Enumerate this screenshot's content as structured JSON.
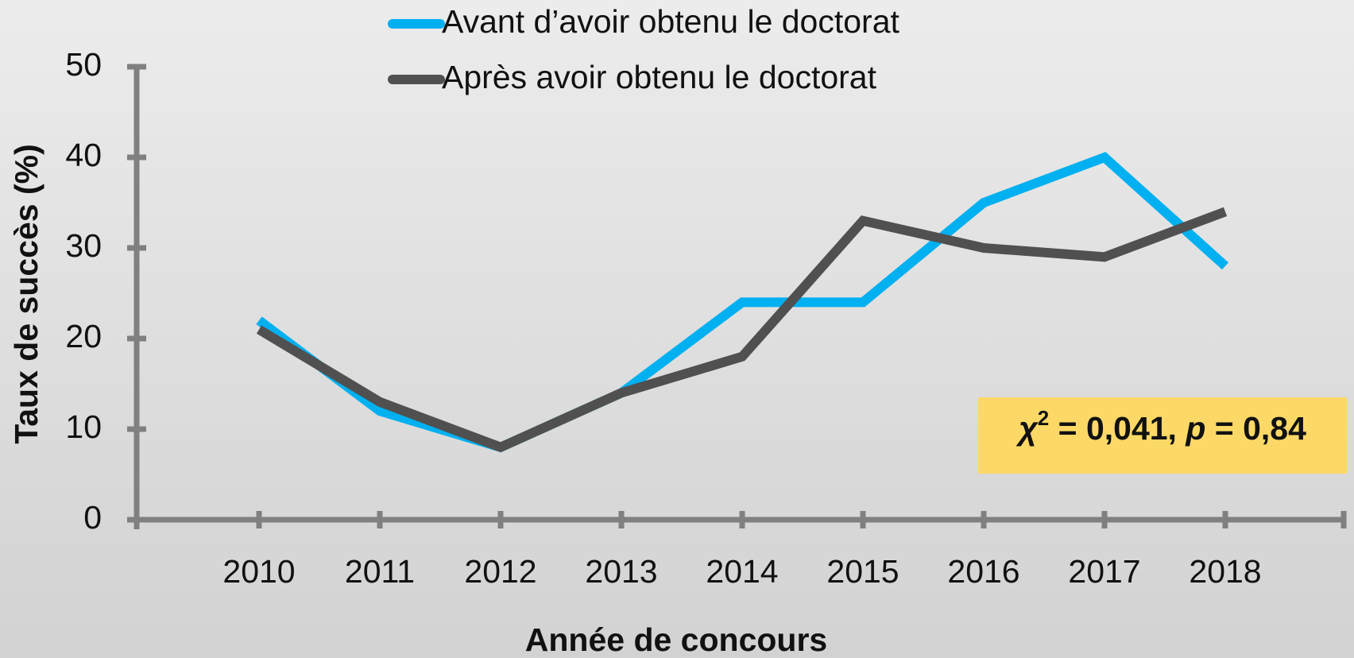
{
  "chart_data": {
    "type": "line",
    "x_label": "Année de concours",
    "y_label": "Taux de succès (%)",
    "categories": [
      "2010",
      "2011",
      "2012",
      "2013",
      "2014",
      "2015",
      "2016",
      "2017",
      "2018"
    ],
    "series": [
      {
        "name": "Avant d’avoir obtenu le doctorat",
        "color": "#00b0f0",
        "values": [
          22,
          12,
          8,
          14,
          24,
          24,
          35,
          40,
          28
        ]
      },
      {
        "name": "Après avoir obtenu le doctorat",
        "color": "#505050",
        "values": [
          21,
          13,
          8,
          14,
          18,
          33,
          30,
          29,
          34
        ]
      }
    ],
    "ylim": [
      0,
      50
    ],
    "yticks": [
      0,
      10,
      20,
      30,
      40,
      50
    ],
    "annotation": [
      "χ",
      "2",
      " = 0,041, ",
      "p",
      " = 0,84"
    ],
    "annotation_color": "#fcd966",
    "axis_color": "#808080"
  }
}
